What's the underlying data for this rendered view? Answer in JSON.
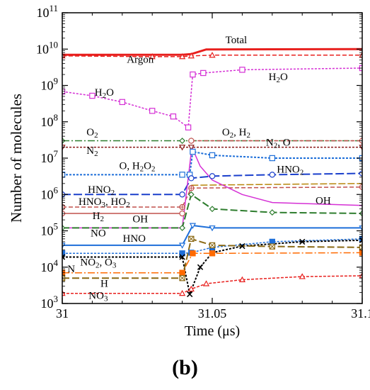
{
  "chart_data": {
    "type": "line",
    "xlabel": "Time (μs)",
    "ylabel": "Number of molecules",
    "xlim": [
      31,
      31.1
    ],
    "ylim_log10": [
      3,
      11
    ],
    "log_y": true,
    "x_ticks": [
      "31",
      "31.05",
      "31.1"
    ],
    "y_ticks": [
      {
        "base": "10",
        "exp": "11"
      },
      {
        "base": "10",
        "exp": "10"
      },
      {
        "base": "10",
        "exp": "9"
      },
      {
        "base": "10",
        "exp": "8"
      },
      {
        "base": "10",
        "exp": "7"
      },
      {
        "base": "10",
        "exp": "6"
      },
      {
        "base": "10",
        "exp": "5"
      },
      {
        "base": "10",
        "exp": "4"
      },
      {
        "base": "10",
        "exp": "3"
      }
    ],
    "grid": false,
    "series": [
      {
        "name": "Total",
        "color": "#e8201e",
        "dash": "",
        "width": 3,
        "marker": "",
        "points": [
          [
            31,
            7000000000.0
          ],
          [
            31.04,
            7000000000.0
          ],
          [
            31.043,
            7300000000.0
          ],
          [
            31.048,
            9800000000.0
          ],
          [
            31.1,
            10000000000.0
          ]
        ]
      },
      {
        "name": "Argon",
        "color": "#e8201e",
        "dash": "6 3",
        "width": 1.5,
        "marker": "triangle",
        "points": [
          [
            31,
            6500000000.0
          ],
          [
            31.03,
            6200000000.0
          ],
          [
            31.04,
            6200000000.0
          ],
          [
            31.043,
            6500000000.0
          ],
          [
            31.05,
            6800000000.0
          ],
          [
            31.1,
            6800000000.0
          ]
        ]
      },
      {
        "name": "H2O",
        "color": "#d530d5",
        "dash": "3 2",
        "width": 1.5,
        "marker": "square",
        "points": [
          [
            31,
            680000000.0
          ],
          [
            31.01,
            520000000.0
          ],
          [
            31.02,
            350000000.0
          ],
          [
            31.03,
            200000000.0
          ],
          [
            31.037,
            140000000.0
          ],
          [
            31.042,
            70000000.0
          ],
          [
            31.0435,
            2000000000.0
          ],
          [
            31.047,
            2200000000.0
          ],
          [
            31.06,
            2700000000.0
          ],
          [
            31.1,
            3000000000.0
          ]
        ]
      },
      {
        "name": "O2",
        "color": "#2e7d2e",
        "dash": "10 3 2 3",
        "width": 1.5,
        "marker": "diamond",
        "points": [
          [
            31,
            30000000.0
          ],
          [
            31.04,
            30000000.0
          ],
          [
            31.043,
            30000000.0
          ],
          [
            31.1,
            30000000.0
          ]
        ]
      },
      {
        "name": "H2",
        "color": "#c0504d",
        "dash": "6 3",
        "width": 1.5,
        "marker": "circle",
        "points": [
          [
            31.043,
            30000000.0
          ],
          [
            31.1,
            30000000.0
          ]
        ]
      },
      {
        "name": "N2",
        "color": "#8b1a1a",
        "dash": "3 2",
        "width": 1.5,
        "marker": "triangle-down",
        "points": [
          [
            31,
            20000000.0
          ],
          [
            31.04,
            20000000.0
          ],
          [
            31.043,
            20000000.0
          ],
          [
            31.1,
            20000000.0
          ]
        ]
      },
      {
        "name": "O, H2O2",
        "color": "#1e6fd9",
        "dash": "3 2",
        "width": 2,
        "marker": "square",
        "points": [
          [
            31,
            3500000.0
          ],
          [
            31.04,
            3500000.0
          ],
          [
            31.0425,
            3500000.0
          ],
          [
            31.0435,
            15000000.0
          ],
          [
            31.05,
            12000000.0
          ],
          [
            31.07,
            10000000.0
          ],
          [
            31.1,
            10000000.0
          ]
        ]
      },
      {
        "name": "HNO2",
        "color": "#1a3fcc",
        "dash": "12 4",
        "width": 2,
        "marker": "circle",
        "points": [
          [
            31,
            1000000.0
          ],
          [
            31.04,
            1000000.0
          ],
          [
            31.043,
            2800000.0
          ],
          [
            31.05,
            3200000.0
          ],
          [
            31.07,
            3500000.0
          ],
          [
            31.1,
            3800000.0
          ]
        ]
      },
      {
        "name": "HO2",
        "color": "#b8860b",
        "dash": "10 3",
        "width": 1.5,
        "marker": "",
        "points": [
          [
            31.043,
            1800000.0
          ],
          [
            31.1,
            2000000.0
          ]
        ]
      },
      {
        "name": "HNO3, HO2",
        "color": "#c0504d",
        "dash": "6 3",
        "width": 1.5,
        "marker": "plus",
        "points": [
          [
            31,
            450000.0
          ],
          [
            31.04,
            450000.0
          ],
          [
            31.043,
            1500000.0
          ],
          [
            31.1,
            1600000.0
          ]
        ]
      },
      {
        "name": "OH",
        "color": "#d530d5",
        "dash": "",
        "width": 1.5,
        "marker": "",
        "points": [
          [
            31,
            120000.0
          ],
          [
            31.04,
            120000.0
          ],
          [
            31.0432,
            20000000.0
          ],
          [
            31.046,
            6000000.0
          ],
          [
            31.05,
            2500000.0
          ],
          [
            31.06,
            1000000.0
          ],
          [
            31.07,
            600000.0
          ],
          [
            31.1,
            500000.0
          ]
        ]
      },
      {
        "name": "H2",
        "color": "#c0504d",
        "dash": "",
        "width": 1.5,
        "marker": "circle",
        "points": [
          [
            31,
            300000.0
          ],
          [
            31.04,
            300000.0
          ]
        ]
      },
      {
        "name": "NO",
        "color": "#2e7d2e",
        "dash": "10 4",
        "width": 2,
        "marker": "diamond",
        "points": [
          [
            31,
            120000.0
          ],
          [
            31.04,
            120000.0
          ],
          [
            31.043,
            1000000.0
          ],
          [
            31.05,
            400000.0
          ],
          [
            31.07,
            320000.0
          ],
          [
            31.1,
            300000.0
          ]
        ]
      },
      {
        "name": "HNO",
        "color": "#1e6fd9",
        "dash": "",
        "width": 2,
        "marker": "triangle-down",
        "points": [
          [
            31,
            40000.0
          ],
          [
            31.04,
            40000.0
          ],
          [
            31.0435,
            140000.0
          ],
          [
            31.05,
            120000.0
          ],
          [
            31.1,
            120000.0
          ]
        ]
      },
      {
        "name": "NO2, O3",
        "color": "#1e6fd9",
        "dash": "3 2",
        "width": 1.5,
        "marker": "filled-square",
        "points": [
          [
            31,
            24000.0
          ],
          [
            31.04,
            24000.0
          ],
          [
            31.043,
            25000.0
          ],
          [
            31.05,
            35000.0
          ],
          [
            31.07,
            50000.0
          ],
          [
            31.1,
            60000.0
          ]
        ]
      },
      {
        "name": "NO2, O3",
        "color": "#000000",
        "dash": "3 2",
        "width": 2,
        "marker": "x",
        "points": [
          [
            31,
            19000.0
          ],
          [
            31.04,
            19000.0
          ],
          [
            31.0425,
            1800.0
          ],
          [
            31.046,
            10000.0
          ],
          [
            31.05,
            25000.0
          ],
          [
            31.06,
            38000.0
          ],
          [
            31.08,
            50000.0
          ],
          [
            31.1,
            55000.0
          ]
        ]
      },
      {
        "name": "N",
        "color": "#ff6a00",
        "dash": "10 3 2 3",
        "width": 1.5,
        "marker": "filled-square",
        "points": [
          [
            31,
            7000.0
          ],
          [
            31.04,
            7000.0
          ],
          [
            31.0435,
            24000.0
          ],
          [
            31.05,
            24000.0
          ],
          [
            31.1,
            25000.0
          ]
        ]
      },
      {
        "name": "H",
        "color": "#8b6914",
        "dash": "10 4",
        "width": 2,
        "marker": "crossed-square",
        "points": [
          [
            31,
            5000.0
          ],
          [
            31.04,
            5000.0
          ],
          [
            31.043,
            60000.0
          ],
          [
            31.05,
            40000.0
          ],
          [
            31.07,
            37000.0
          ],
          [
            31.1,
            35000.0
          ]
        ]
      },
      {
        "name": "NO3",
        "color": "#e8201e",
        "dash": "4 2",
        "width": 1.5,
        "marker": "triangle",
        "points": [
          [
            31,
            1900.0
          ],
          [
            31.04,
            1900.0
          ],
          [
            31.043,
            2500.0
          ],
          [
            31.048,
            3500.0
          ],
          [
            31.06,
            4500.0
          ],
          [
            31.08,
            5500.0
          ],
          [
            31.1,
            5800.0
          ]
        ]
      }
    ],
    "annotations": [
      {
        "text": "Total",
        "x": 31.058,
        "y": 14500000000.0
      },
      {
        "text": "Argon",
        "x": 31.026,
        "y": 4200000000.0
      },
      {
        "text": "H2O",
        "x": 31.014,
        "y": 520000000.0
      },
      {
        "text": "H2O",
        "x": 31.072,
        "y": 1400000000.0
      },
      {
        "text": "O2",
        "x": 31.01,
        "y": 42000000.0
      },
      {
        "text": "O2, H2",
        "x": 31.058,
        "y": 42000000.0
      },
      {
        "text": "N2",
        "x": 31.01,
        "y": 13000000.0
      },
      {
        "text": "N2, O",
        "x": 31.072,
        "y": 22000000.0
      },
      {
        "text": "O, H2O2",
        "x": 31.025,
        "y": 5000000.0
      },
      {
        "text": "HNO2",
        "x": 31.013,
        "y": 1100000.0
      },
      {
        "text": "HNO2",
        "x": 31.076,
        "y": 4000000.0
      },
      {
        "text": "HNO3, HO2",
        "x": 31.014,
        "y": 520000.0
      },
      {
        "text": "H2",
        "x": 31.012,
        "y": 210000.0
      },
      {
        "text": "OH",
        "x": 31.026,
        "y": 170000.0
      },
      {
        "text": "OH",
        "x": 31.087,
        "y": 550000.0
      },
      {
        "text": "NO",
        "x": 31.012,
        "y": 70000.0
      },
      {
        "text": "HNO",
        "x": 31.024,
        "y": 50000.0
      },
      {
        "text": "NO2, O3",
        "x": 31.012,
        "y": 11000.0
      },
      {
        "text": "N",
        "x": 31.003,
        "y": 7300.0
      },
      {
        "text": "H",
        "x": 31.014,
        "y": 2900.0
      },
      {
        "text": "NO3",
        "x": 31.012,
        "y": 1350.0
      }
    ]
  },
  "caption": "(b)"
}
